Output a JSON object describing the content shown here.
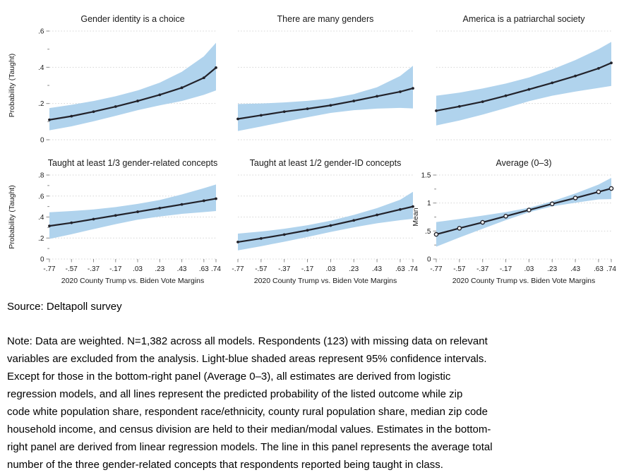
{
  "colors": {
    "band": "#b0d3ed",
    "line": "#22222a",
    "grid": "#d4d4d4"
  },
  "source": "Source: Deltapoll survey",
  "note": "Note: Data are weighted. N=1,382 across all models. Respondents (123) with missing data on relevant\nvariables are excluded from the analysis. Light-blue shaded areas represent 95% confidence intervals.\nExcept for those in the bottom-right panel (Average 0–3), all estimates are derived from logistic\nregression models, and all lines represent the predicted probability of the listed outcome while zip\ncode white population share, respondent race/ethnicity, county rural population share, median zip code\nhousehold income, and census division are held to their median/modal values. Estimates in the bottom-\nright panel are derived from linear regression models. The line in this panel represents the average total\nnumber of the three gender-related concepts that respondents reported being taught in class.",
  "chart_data": [
    {
      "type": "line",
      "title": "Gender identity is a choice",
      "ylabel": "Probability (Taught)",
      "xlim": [
        -0.77,
        0.74
      ],
      "ylim": [
        0,
        0.6
      ],
      "yticks": [
        0,
        0.2,
        0.4,
        0.6
      ],
      "ytick_labels": [
        "0",
        ".2",
        ".4",
        ".6"
      ],
      "yticks_minor": [
        0.1,
        0.3,
        0.5
      ],
      "x": [
        -0.77,
        -0.57,
        -0.37,
        -0.17,
        0.03,
        0.23,
        0.43,
        0.63,
        0.74
      ],
      "line": [
        0.11,
        0.13,
        0.155,
        0.183,
        0.214,
        0.248,
        0.287,
        0.342,
        0.398
      ],
      "ci_upper": [
        0.175,
        0.193,
        0.214,
        0.24,
        0.272,
        0.315,
        0.375,
        0.46,
        0.535
      ],
      "ci_lower": [
        0.052,
        0.074,
        0.102,
        0.132,
        0.163,
        0.19,
        0.214,
        0.248,
        0.272
      ],
      "marker": "dot",
      "legend": "none",
      "grid": "horizontal-dotted"
    },
    {
      "type": "line",
      "title": "There are many genders",
      "xlim": [
        -0.77,
        0.74
      ],
      "ylim": [
        0,
        0.6
      ],
      "yticks": [
        0,
        0.2,
        0.4,
        0.6
      ],
      "x": [
        -0.77,
        -0.57,
        -0.37,
        -0.17,
        0.03,
        0.23,
        0.43,
        0.63,
        0.74
      ],
      "line": [
        0.115,
        0.135,
        0.155,
        0.171,
        0.19,
        0.214,
        0.24,
        0.265,
        0.284
      ],
      "ci_upper": [
        0.197,
        0.2,
        0.206,
        0.215,
        0.228,
        0.252,
        0.29,
        0.352,
        0.408
      ],
      "ci_lower": [
        0.048,
        0.073,
        0.099,
        0.124,
        0.148,
        0.163,
        0.172,
        0.176,
        0.173
      ],
      "marker": "dot",
      "legend": "none",
      "grid": "horizontal-dotted"
    },
    {
      "type": "line",
      "title": "America is a patriarchal society",
      "xlim": [
        -0.77,
        0.74
      ],
      "ylim": [
        0,
        0.6
      ],
      "yticks": [
        0,
        0.2,
        0.4,
        0.6
      ],
      "x": [
        -0.77,
        -0.57,
        -0.37,
        -0.17,
        0.03,
        0.23,
        0.43,
        0.63,
        0.74
      ],
      "line": [
        0.16,
        0.184,
        0.21,
        0.243,
        0.278,
        0.314,
        0.352,
        0.394,
        0.424
      ],
      "ci_upper": [
        0.243,
        0.26,
        0.283,
        0.31,
        0.344,
        0.388,
        0.44,
        0.5,
        0.54
      ],
      "ci_lower": [
        0.079,
        0.106,
        0.139,
        0.175,
        0.213,
        0.243,
        0.266,
        0.286,
        0.297
      ],
      "marker": "dot",
      "legend": "none",
      "grid": "horizontal-dotted"
    },
    {
      "type": "line",
      "title": "Taught at least 1/3 gender-related concepts",
      "ylabel": "Probability (Taught)",
      "xlabel": "2020 County Trump vs. Biden Vote Margins",
      "xlim": [
        -0.77,
        0.74
      ],
      "ylim": [
        0,
        0.8
      ],
      "yticks": [
        0,
        0.2,
        0.4,
        0.6,
        0.8
      ],
      "ytick_labels": [
        "0",
        ".2",
        ".4",
        ".6",
        ".8"
      ],
      "yticks_minor": [
        0.1,
        0.3,
        0.5,
        0.7
      ],
      "x": [
        -0.77,
        -0.57,
        -0.37,
        -0.17,
        0.03,
        0.23,
        0.43,
        0.63,
        0.74
      ],
      "xtick_labels": [
        "-.77",
        "-.57",
        "-.37",
        "-.17",
        ".03",
        ".23",
        ".43",
        ".63",
        ".74"
      ],
      "line": [
        0.315,
        0.345,
        0.38,
        0.415,
        0.45,
        0.485,
        0.52,
        0.555,
        0.575
      ],
      "ci_upper": [
        0.445,
        0.457,
        0.472,
        0.495,
        0.525,
        0.562,
        0.615,
        0.675,
        0.71
      ],
      "ci_lower": [
        0.192,
        0.236,
        0.285,
        0.332,
        0.375,
        0.405,
        0.43,
        0.447,
        0.457
      ],
      "marker": "dot",
      "legend": "none",
      "grid": "horizontal-dotted"
    },
    {
      "type": "line",
      "title": "Taught at least 1/2 gender-ID concepts",
      "xlabel": "2020 County Trump vs. Biden Vote Margins",
      "xlim": [
        -0.77,
        0.74
      ],
      "ylim": [
        0,
        0.8
      ],
      "yticks": [
        0,
        0.2,
        0.4,
        0.6,
        0.8
      ],
      "x": [
        -0.77,
        -0.57,
        -0.37,
        -0.17,
        0.03,
        0.23,
        0.43,
        0.63,
        0.74
      ],
      "xtick_labels": [
        "-.77",
        "-.57",
        "-.37",
        "-.17",
        ".03",
        ".23",
        ".43",
        ".63",
        ".74"
      ],
      "line": [
        0.162,
        0.196,
        0.233,
        0.274,
        0.319,
        0.368,
        0.42,
        0.472,
        0.5
      ],
      "ci_upper": [
        0.242,
        0.262,
        0.288,
        0.322,
        0.365,
        0.42,
        0.485,
        0.565,
        0.64
      ],
      "ci_lower": [
        0.082,
        0.122,
        0.165,
        0.21,
        0.258,
        0.302,
        0.34,
        0.37,
        0.383
      ],
      "marker": "dot",
      "legend": "none",
      "grid": "horizontal-dotted"
    },
    {
      "type": "line",
      "title": "Average (0–3)",
      "ylabel": "Mean",
      "xlabel": "2020 County Trump vs. Biden Vote Margins",
      "xlim": [
        -0.77,
        0.74
      ],
      "ylim": [
        0,
        1.5
      ],
      "yticks": [
        0,
        0.5,
        1,
        1.5
      ],
      "ytick_labels": [
        "0",
        ".5",
        "1",
        "1.5"
      ],
      "yticks_minor": [
        0.25,
        0.75,
        1.25
      ],
      "x": [
        -0.77,
        -0.57,
        -0.37,
        -0.17,
        0.03,
        0.23,
        0.43,
        0.63,
        0.74
      ],
      "xtick_labels": [
        "-.77",
        "-.57",
        "-.37",
        "-.17",
        ".03",
        ".23",
        ".43",
        ".63",
        ".74"
      ],
      "line": [
        0.44,
        0.55,
        0.655,
        0.765,
        0.875,
        0.985,
        1.09,
        1.2,
        1.26
      ],
      "ci_upper": [
        0.66,
        0.715,
        0.775,
        0.838,
        0.915,
        1.03,
        1.17,
        1.33,
        1.45
      ],
      "ci_lower": [
        0.22,
        0.385,
        0.54,
        0.695,
        0.835,
        0.94,
        1.005,
        1.065,
        1.07
      ],
      "marker": "circle",
      "legend": "none",
      "grid": "horizontal-dotted"
    }
  ]
}
